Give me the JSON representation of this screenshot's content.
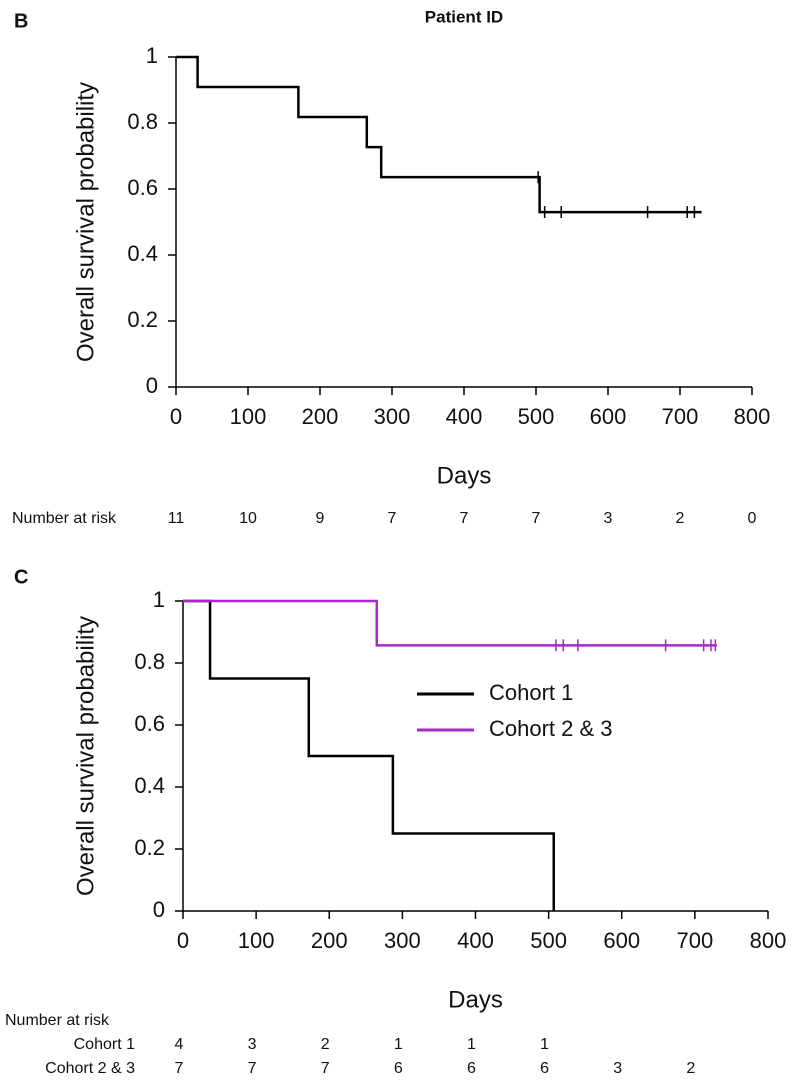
{
  "chart_data": [
    {
      "type": "km",
      "panel_label": "B",
      "title": "Patient ID",
      "xlabel": "Days",
      "ylabel": "Overall survival probability",
      "xlim": [
        0,
        800
      ],
      "xticks": [
        0,
        100,
        200,
        300,
        400,
        500,
        600,
        700,
        800
      ],
      "ylim": [
        0,
        1
      ],
      "yticks": [
        0,
        0.2,
        0.4,
        0.6,
        0.8,
        1
      ],
      "series": [
        {
          "color": "#000000",
          "x": [
            0,
            30,
            170,
            265,
            285,
            505,
            730
          ],
          "values": [
            1,
            0.909,
            0.818,
            0.727,
            0.636,
            0.53,
            0.53
          ],
          "censor_x": [
            503,
            512,
            535,
            655,
            710,
            720
          ],
          "censor_values": [
            0.636,
            0.53,
            0.53,
            0.53,
            0.53,
            0.53
          ]
        }
      ],
      "risk_title": "Number at risk",
      "at_risk": [
        11,
        10,
        9,
        7,
        7,
        7,
        3,
        2,
        0
      ]
    },
    {
      "type": "km",
      "panel_label": "C",
      "xlabel": "Days",
      "ylabel": "Overall survival probability",
      "xlim": [
        0,
        800
      ],
      "xticks": [
        0,
        100,
        200,
        300,
        400,
        500,
        600,
        700,
        800
      ],
      "ylim": [
        0,
        1
      ],
      "yticks": [
        0,
        0.2,
        0.4,
        0.6,
        0.8,
        1
      ],
      "legend_loc": "center right",
      "series": [
        {
          "name": "Cohort 1",
          "color": "#000000",
          "x": [
            0,
            37,
            172,
            287,
            507
          ],
          "values": [
            1,
            0.75,
            0.5,
            0.25,
            0
          ],
          "censor_x": [],
          "censor_values": [],
          "at_risk": [
            4,
            3,
            2,
            1,
            1,
            1
          ]
        },
        {
          "name": "Cohort 2 & 3",
          "color": "#a62bc4",
          "x": [
            0,
            265,
            730
          ],
          "values": [
            1,
            0.857,
            0.857
          ],
          "censor_x": [
            510,
            520,
            540,
            660,
            712,
            722,
            728
          ],
          "censor_values": [
            0.857,
            0.857,
            0.857,
            0.857,
            0.857,
            0.857,
            0.857
          ],
          "at_risk": [
            7,
            7,
            7,
            6,
            6,
            6,
            3,
            2
          ]
        }
      ],
      "risk_title": "Number at risk"
    }
  ]
}
